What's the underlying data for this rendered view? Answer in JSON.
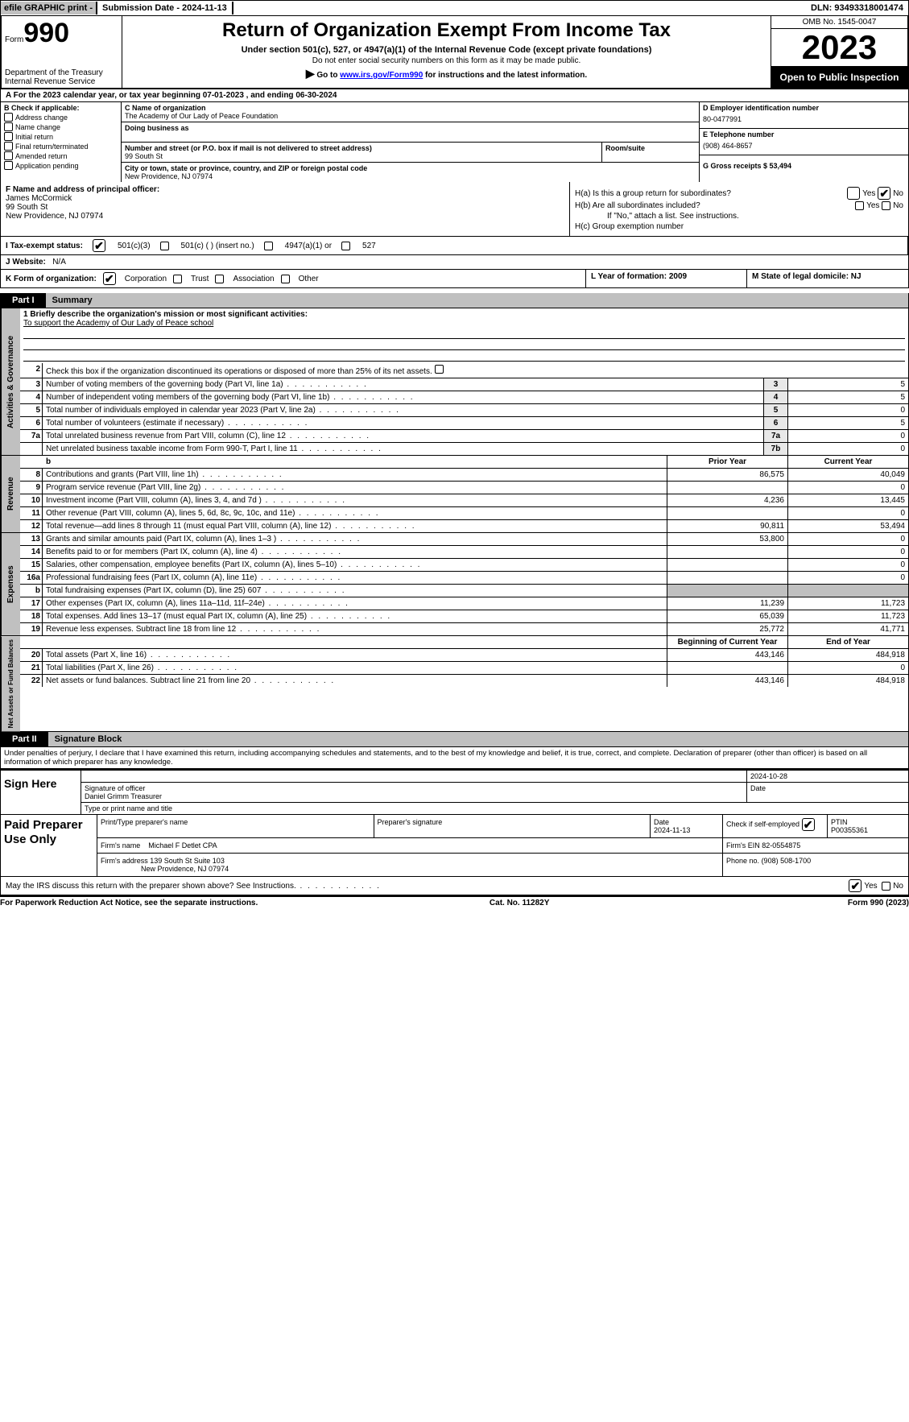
{
  "topbar": {
    "efile": "efile GRAPHIC print -",
    "subdate_lbl": "Submission Date - 2024-11-13",
    "dln": "DLN: 93493318001474"
  },
  "header": {
    "form_word": "Form",
    "form_num": "990",
    "dept": "Department of the Treasury",
    "irs": "Internal Revenue Service",
    "title": "Return of Organization Exempt From Income Tax",
    "sub": "Under section 501(c), 527, or 4947(a)(1) of the Internal Revenue Code (except private foundations)",
    "sub2": "Do not enter social security numbers on this form as it may be made public.",
    "sub3_pre": "Go to ",
    "sub3_link": "www.irs.gov/Form990",
    "sub3_post": " for instructions and the latest information.",
    "omb": "OMB No. 1545-0047",
    "year": "2023",
    "open": "Open to Public Inspection"
  },
  "row_a": "A For the 2023 calendar year, or tax year beginning 07-01-2023    , and ending 06-30-2024",
  "col_b": {
    "lbl": "B Check if applicable:",
    "items": [
      "Address change",
      "Name change",
      "Initial return",
      "Final return/terminated",
      "Amended return",
      "Application pending"
    ]
  },
  "col_c": {
    "name_lbl": "C Name of organization",
    "name": "The Academy of Our Lady of Peace Foundation",
    "dba_lbl": "Doing business as",
    "street_lbl": "Number and street (or P.O. box if mail is not delivered to street address)",
    "room_lbl": "Room/suite",
    "street": "99 South St",
    "city_lbl": "City or town, state or province, country, and ZIP or foreign postal code",
    "city": "New Providence, NJ  07974"
  },
  "col_deg": {
    "d_lbl": "D Employer identification number",
    "d_val": "80-0477991",
    "e_lbl": "E Telephone number",
    "e_val": "(908) 464-8657",
    "g_lbl": "G Gross receipts $ 53,494"
  },
  "col_f": {
    "lbl": "F  Name and address of principal officer:",
    "name": "James McCormick",
    "street": "99 South St",
    "city": "New Providence, NJ  07974"
  },
  "col_h": {
    "ha": "H(a)  Is this a group return for subordinates?",
    "hb": "H(b)  Are all subordinates included?",
    "hb_note": "If \"No,\" attach a list. See instructions.",
    "hc": "H(c)  Group exemption number",
    "yes": "Yes",
    "no": "No"
  },
  "row_i": {
    "lbl": "I    Tax-exempt status:",
    "o1": "501(c)(3)",
    "o2": "501(c) (  ) (insert no.)",
    "o3": "4947(a)(1) or",
    "o4": "527"
  },
  "row_j": {
    "lbl": "J    Website:",
    "val": "N/A"
  },
  "row_k": {
    "lbl": "K Form of organization:",
    "o1": "Corporation",
    "o2": "Trust",
    "o3": "Association",
    "o4": "Other"
  },
  "row_l": {
    "lbl": "L Year of formation: 2009"
  },
  "row_m": {
    "lbl": "M State of legal domicile: NJ"
  },
  "part1": {
    "tab": "Part I",
    "title": "Summary"
  },
  "gov": {
    "vtab": "Activities & Governance",
    "l1_lbl": "1   Briefly describe the organization's mission or most significant activities:",
    "l1_val": "To support the Academy of Our Lady of Peace school",
    "l2": "Check this box      if the organization discontinued its operations or disposed of more than 25% of its net assets.",
    "lines": [
      {
        "n": "3",
        "d": "Number of voting members of the governing body (Part VI, line 1a)",
        "b": "3",
        "v": "5"
      },
      {
        "n": "4",
        "d": "Number of independent voting members of the governing body (Part VI, line 1b)",
        "b": "4",
        "v": "5"
      },
      {
        "n": "5",
        "d": "Total number of individuals employed in calendar year 2023 (Part V, line 2a)",
        "b": "5",
        "v": "0"
      },
      {
        "n": "6",
        "d": "Total number of volunteers (estimate if necessary)",
        "b": "6",
        "v": "5"
      },
      {
        "n": "7a",
        "d": "Total unrelated business revenue from Part VIII, column (C), line 12",
        "b": "7a",
        "v": "0"
      },
      {
        "n": "",
        "d": "Net unrelated business taxable income from Form 990-T, Part I, line 11",
        "b": "7b",
        "v": "0"
      }
    ]
  },
  "rev": {
    "vtab": "Revenue",
    "hdr_prior": "Prior Year",
    "hdr_cur": "Current Year",
    "lines": [
      {
        "n": "8",
        "d": "Contributions and grants (Part VIII, line 1h)",
        "p": "86,575",
        "c": "40,049"
      },
      {
        "n": "9",
        "d": "Program service revenue (Part VIII, line 2g)",
        "p": "",
        "c": "0"
      },
      {
        "n": "10",
        "d": "Investment income (Part VIII, column (A), lines 3, 4, and 7d )",
        "p": "4,236",
        "c": "13,445"
      },
      {
        "n": "11",
        "d": "Other revenue (Part VIII, column (A), lines 5, 6d, 8c, 9c, 10c, and 11e)",
        "p": "",
        "c": "0"
      },
      {
        "n": "12",
        "d": "Total revenue—add lines 8 through 11 (must equal Part VIII, column (A), line 12)",
        "p": "90,811",
        "c": "53,494"
      }
    ]
  },
  "exp": {
    "vtab": "Expenses",
    "lines": [
      {
        "n": "13",
        "d": "Grants and similar amounts paid (Part IX, column (A), lines 1–3 )",
        "p": "53,800",
        "c": "0"
      },
      {
        "n": "14",
        "d": "Benefits paid to or for members (Part IX, column (A), line 4)",
        "p": "",
        "c": "0"
      },
      {
        "n": "15",
        "d": "Salaries, other compensation, employee benefits (Part IX, column (A), lines 5–10)",
        "p": "",
        "c": "0"
      },
      {
        "n": "16a",
        "d": "Professional fundraising fees (Part IX, column (A), line 11e)",
        "p": "",
        "c": "0"
      },
      {
        "n": "b",
        "d": "Total fundraising expenses (Part IX, column (D), line 25) 607",
        "p": "",
        "c": "",
        "shade": true
      },
      {
        "n": "17",
        "d": "Other expenses (Part IX, column (A), lines 11a–11d, 11f–24e)",
        "p": "11,239",
        "c": "11,723"
      },
      {
        "n": "18",
        "d": "Total expenses. Add lines 13–17 (must equal Part IX, column (A), line 25)",
        "p": "65,039",
        "c": "11,723"
      },
      {
        "n": "19",
        "d": "Revenue less expenses. Subtract line 18 from line 12",
        "p": "25,772",
        "c": "41,771"
      }
    ]
  },
  "net": {
    "vtab": "Net Assets or Fund Balances",
    "hdr_beg": "Beginning of Current Year",
    "hdr_end": "End of Year",
    "lines": [
      {
        "n": "20",
        "d": "Total assets (Part X, line 16)",
        "p": "443,146",
        "c": "484,918"
      },
      {
        "n": "21",
        "d": "Total liabilities (Part X, line 26)",
        "p": "",
        "c": "0"
      },
      {
        "n": "22",
        "d": "Net assets or fund balances. Subtract line 21 from line 20",
        "p": "443,146",
        "c": "484,918"
      }
    ]
  },
  "part2": {
    "tab": "Part II",
    "title": "Signature Block"
  },
  "penalty": "Under penalties of perjury, I declare that I have examined this return, including accompanying schedules and statements, and to the best of my knowledge and belief, it is true, correct, and complete. Declaration of preparer (other than officer) is based on all information of which preparer has any knowledge.",
  "sign": {
    "lbl": "Sign Here",
    "sig_lbl": "Signature of officer",
    "date_lbl": "Date",
    "date": "2024-10-28",
    "name_lbl": "Type or print name and title",
    "name": "Daniel Grimm Treasurer"
  },
  "prep": {
    "lbl": "Paid Preparer Use Only",
    "r1": {
      "c1": "Print/Type preparer's name",
      "c2": "Preparer's signature",
      "c3": "Date",
      "c3v": "2024-11-13",
      "c4": "Check         if self-employed",
      "c5": "PTIN",
      "c5v": "P00355361"
    },
    "r2": {
      "c1": "Firm's name",
      "c1v": "Michael F Detlet CPA",
      "c2": "Firm's EIN",
      "c2v": "82-0554875"
    },
    "r3": {
      "c1": "Firm's address",
      "c1v": "139 South St Suite 103",
      "c1v2": "New Providence, NJ  07974",
      "c2": "Phone no.",
      "c2v": "(908) 508-1700"
    }
  },
  "discuss": {
    "txt": "May the IRS discuss this return with the preparer shown above? See Instructions.",
    "yes": "Yes",
    "no": "No"
  },
  "footer": {
    "l": "For Paperwork Reduction Act Notice, see the separate instructions.",
    "c": "Cat. No. 11282Y",
    "r": "Form 990 (2023)"
  }
}
